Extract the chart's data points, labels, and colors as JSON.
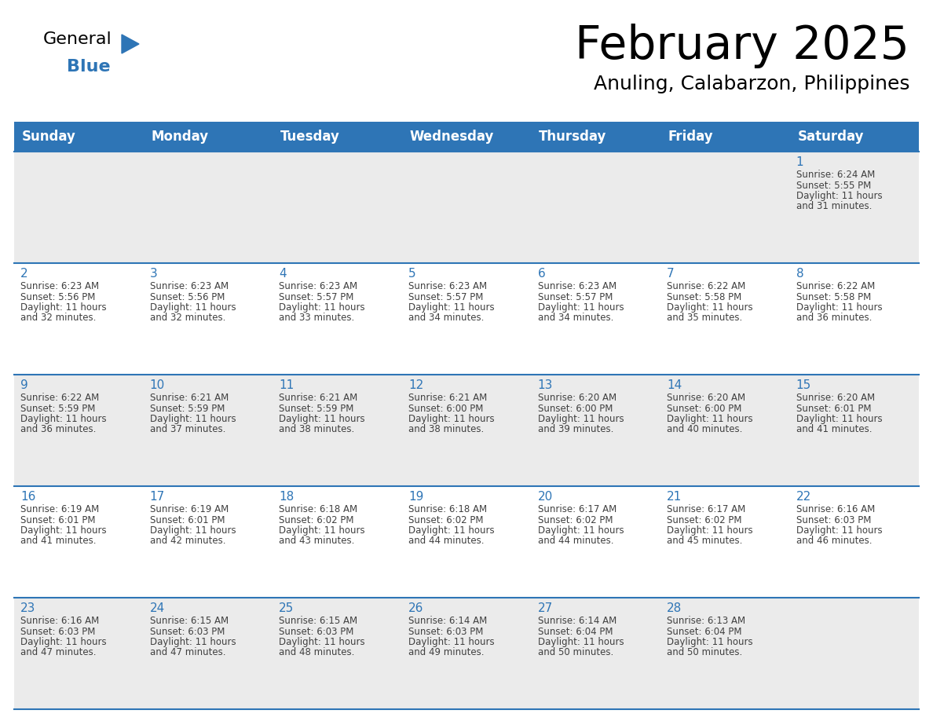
{
  "title": "February 2025",
  "subtitle": "Anuling, Calabarzon, Philippines",
  "header_bg_color": "#2E75B6",
  "header_text_color": "#FFFFFF",
  "row0_bg": "#EBEBEB",
  "odd_row_bg": "#FFFFFF",
  "even_row_bg": "#EBEBEB",
  "border_color": "#2E75B6",
  "day_num_color": "#2E75B6",
  "text_color": "#404040",
  "day_headers": [
    "Sunday",
    "Monday",
    "Tuesday",
    "Wednesday",
    "Thursday",
    "Friday",
    "Saturday"
  ],
  "days": [
    {
      "day": 1,
      "col": 6,
      "row": 0,
      "sunrise": "6:24 AM",
      "sunset": "5:55 PM",
      "daylight": "11 hours",
      "daylight2": "and 31 minutes."
    },
    {
      "day": 2,
      "col": 0,
      "row": 1,
      "sunrise": "6:23 AM",
      "sunset": "5:56 PM",
      "daylight": "11 hours",
      "daylight2": "and 32 minutes."
    },
    {
      "day": 3,
      "col": 1,
      "row": 1,
      "sunrise": "6:23 AM",
      "sunset": "5:56 PM",
      "daylight": "11 hours",
      "daylight2": "and 32 minutes."
    },
    {
      "day": 4,
      "col": 2,
      "row": 1,
      "sunrise": "6:23 AM",
      "sunset": "5:57 PM",
      "daylight": "11 hours",
      "daylight2": "and 33 minutes."
    },
    {
      "day": 5,
      "col": 3,
      "row": 1,
      "sunrise": "6:23 AM",
      "sunset": "5:57 PM",
      "daylight": "11 hours",
      "daylight2": "and 34 minutes."
    },
    {
      "day": 6,
      "col": 4,
      "row": 1,
      "sunrise": "6:23 AM",
      "sunset": "5:57 PM",
      "daylight": "11 hours",
      "daylight2": "and 34 minutes."
    },
    {
      "day": 7,
      "col": 5,
      "row": 1,
      "sunrise": "6:22 AM",
      "sunset": "5:58 PM",
      "daylight": "11 hours",
      "daylight2": "and 35 minutes."
    },
    {
      "day": 8,
      "col": 6,
      "row": 1,
      "sunrise": "6:22 AM",
      "sunset": "5:58 PM",
      "daylight": "11 hours",
      "daylight2": "and 36 minutes."
    },
    {
      "day": 9,
      "col": 0,
      "row": 2,
      "sunrise": "6:22 AM",
      "sunset": "5:59 PM",
      "daylight": "11 hours",
      "daylight2": "and 36 minutes."
    },
    {
      "day": 10,
      "col": 1,
      "row": 2,
      "sunrise": "6:21 AM",
      "sunset": "5:59 PM",
      "daylight": "11 hours",
      "daylight2": "and 37 minutes."
    },
    {
      "day": 11,
      "col": 2,
      "row": 2,
      "sunrise": "6:21 AM",
      "sunset": "5:59 PM",
      "daylight": "11 hours",
      "daylight2": "and 38 minutes."
    },
    {
      "day": 12,
      "col": 3,
      "row": 2,
      "sunrise": "6:21 AM",
      "sunset": "6:00 PM",
      "daylight": "11 hours",
      "daylight2": "and 38 minutes."
    },
    {
      "day": 13,
      "col": 4,
      "row": 2,
      "sunrise": "6:20 AM",
      "sunset": "6:00 PM",
      "daylight": "11 hours",
      "daylight2": "and 39 minutes."
    },
    {
      "day": 14,
      "col": 5,
      "row": 2,
      "sunrise": "6:20 AM",
      "sunset": "6:00 PM",
      "daylight": "11 hours",
      "daylight2": "and 40 minutes."
    },
    {
      "day": 15,
      "col": 6,
      "row": 2,
      "sunrise": "6:20 AM",
      "sunset": "6:01 PM",
      "daylight": "11 hours",
      "daylight2": "and 41 minutes."
    },
    {
      "day": 16,
      "col": 0,
      "row": 3,
      "sunrise": "6:19 AM",
      "sunset": "6:01 PM",
      "daylight": "11 hours",
      "daylight2": "and 41 minutes."
    },
    {
      "day": 17,
      "col": 1,
      "row": 3,
      "sunrise": "6:19 AM",
      "sunset": "6:01 PM",
      "daylight": "11 hours",
      "daylight2": "and 42 minutes."
    },
    {
      "day": 18,
      "col": 2,
      "row": 3,
      "sunrise": "6:18 AM",
      "sunset": "6:02 PM",
      "daylight": "11 hours",
      "daylight2": "and 43 minutes."
    },
    {
      "day": 19,
      "col": 3,
      "row": 3,
      "sunrise": "6:18 AM",
      "sunset": "6:02 PM",
      "daylight": "11 hours",
      "daylight2": "and 44 minutes."
    },
    {
      "day": 20,
      "col": 4,
      "row": 3,
      "sunrise": "6:17 AM",
      "sunset": "6:02 PM",
      "daylight": "11 hours",
      "daylight2": "and 44 minutes."
    },
    {
      "day": 21,
      "col": 5,
      "row": 3,
      "sunrise": "6:17 AM",
      "sunset": "6:02 PM",
      "daylight": "11 hours",
      "daylight2": "and 45 minutes."
    },
    {
      "day": 22,
      "col": 6,
      "row": 3,
      "sunrise": "6:16 AM",
      "sunset": "6:03 PM",
      "daylight": "11 hours",
      "daylight2": "and 46 minutes."
    },
    {
      "day": 23,
      "col": 0,
      "row": 4,
      "sunrise": "6:16 AM",
      "sunset": "6:03 PM",
      "daylight": "11 hours",
      "daylight2": "and 47 minutes."
    },
    {
      "day": 24,
      "col": 1,
      "row": 4,
      "sunrise": "6:15 AM",
      "sunset": "6:03 PM",
      "daylight": "11 hours",
      "daylight2": "and 47 minutes."
    },
    {
      "day": 25,
      "col": 2,
      "row": 4,
      "sunrise": "6:15 AM",
      "sunset": "6:03 PM",
      "daylight": "11 hours",
      "daylight2": "and 48 minutes."
    },
    {
      "day": 26,
      "col": 3,
      "row": 4,
      "sunrise": "6:14 AM",
      "sunset": "6:03 PM",
      "daylight": "11 hours",
      "daylight2": "and 49 minutes."
    },
    {
      "day": 27,
      "col": 4,
      "row": 4,
      "sunrise": "6:14 AM",
      "sunset": "6:04 PM",
      "daylight": "11 hours",
      "daylight2": "and 50 minutes."
    },
    {
      "day": 28,
      "col": 5,
      "row": 4,
      "sunrise": "6:13 AM",
      "sunset": "6:04 PM",
      "daylight": "11 hours",
      "daylight2": "and 50 minutes."
    }
  ],
  "logo_text1": "General",
  "logo_text2": "Blue",
  "logo_color1": "#000000",
  "logo_color2": "#2E75B6",
  "logo_triangle_color": "#2E75B6"
}
